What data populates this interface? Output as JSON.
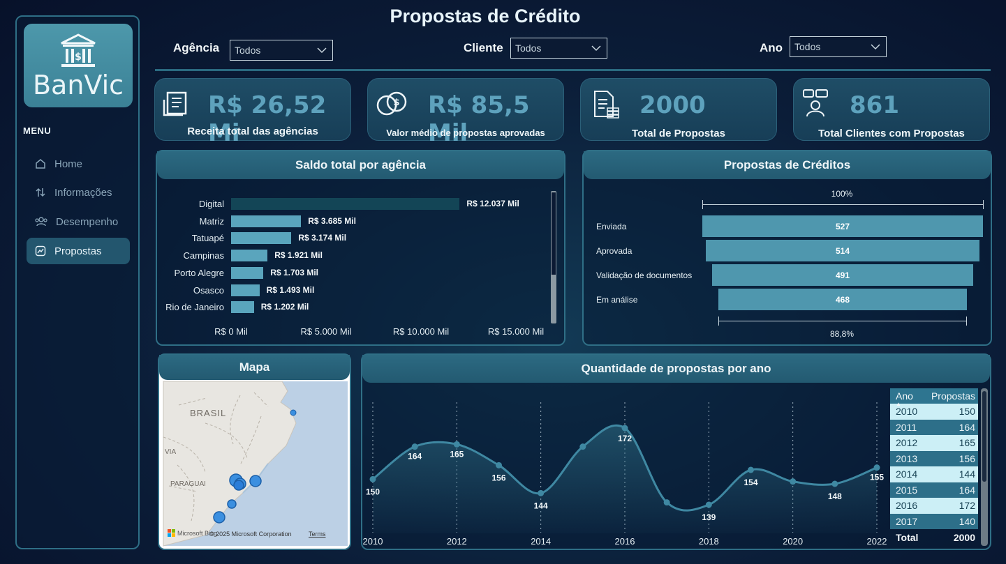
{
  "header": {
    "title": "Propostas de Crédito"
  },
  "sidebar": {
    "logo_text": "BanVic",
    "menu_label": "MENU",
    "items": [
      {
        "label": "Home",
        "icon": "home-icon"
      },
      {
        "label": "Informações",
        "icon": "sort-arrows-icon"
      },
      {
        "label": "Desempenho",
        "icon": "users-icon"
      },
      {
        "label": "Propostas",
        "icon": "trend-chart-icon"
      }
    ],
    "active": "Propostas"
  },
  "filters": {
    "agencia": {
      "label": "Agência",
      "value": "Todos"
    },
    "cliente": {
      "label": "Cliente",
      "value": "Todos"
    },
    "ano": {
      "label": "Ano",
      "value": "Todos"
    }
  },
  "kpis": [
    {
      "value": "R$ 26,52 Mi",
      "label": "Receita total das agências",
      "icon": "receipt-icon"
    },
    {
      "value": "R$ 85,5 Mil",
      "label": "Valor médio de propostas aprovadas",
      "icon": "coins-icon"
    },
    {
      "value": "2000",
      "label": "Total de Propostas",
      "icon": "document-money-icon"
    },
    {
      "value": "861",
      "label": "Total Clientes com Propostas",
      "icon": "client-chat-icon"
    }
  ],
  "saldo_panel": {
    "title": "Saldo total por agência"
  },
  "funnel_panel": {
    "title": "Propostas de Créditos",
    "top_pct": "100%",
    "bottom_pct": "88,8%"
  },
  "map_panel": {
    "title": "Mapa",
    "labels": {
      "country": "BRASIL",
      "paraguai": "PARAGUAI",
      "bolivia": "VIA"
    },
    "attribution": "© 2025 Microsoft Corporation",
    "terms": "Terms",
    "brand": "Microsoft Bing"
  },
  "year_panel": {
    "title": "Quantidade de propostas por ano",
    "table": {
      "col_ano": "Ano",
      "col_propostas": "Propostas",
      "rows": [
        {
          "ano": "2010",
          "v": "150"
        },
        {
          "ano": "2011",
          "v": "164"
        },
        {
          "ano": "2012",
          "v": "165"
        },
        {
          "ano": "2013",
          "v": "156"
        },
        {
          "ano": "2014",
          "v": "144"
        },
        {
          "ano": "2015",
          "v": "164"
        },
        {
          "ano": "2016",
          "v": "172"
        },
        {
          "ano": "2017",
          "v": "140"
        }
      ],
      "total_label": "Total",
      "total_value": "2000"
    }
  },
  "colors": {
    "accent": "#4f97ae",
    "panel_border": "#2f6f86",
    "kpi_value": "#5ea2bd"
  },
  "chart_data": [
    {
      "type": "bar",
      "orientation": "horizontal",
      "title": "Saldo total por agência",
      "categories": [
        "Digital",
        "Matriz",
        "Tatuapé",
        "Campinas",
        "Porto Alegre",
        "Osasco",
        "Rio de Janeiro"
      ],
      "values": [
        12037,
        3685,
        3174,
        1921,
        1703,
        1493,
        1202
      ],
      "value_labels": [
        "R$ 12.037 Mil",
        "R$ 3.685 Mil",
        "R$ 3.174 Mil",
        "R$ 1.921 Mil",
        "R$ 1.703 Mil",
        "R$ 1.493 Mil",
        "R$ 1.202 Mil"
      ],
      "xticks": [
        "R$ 0 Mil",
        "R$ 5.000 Mil",
        "R$ 10.000 Mil",
        "R$ 15.000 Mil"
      ],
      "xlim": [
        0,
        15000
      ]
    },
    {
      "type": "bar",
      "subtype": "funnel",
      "title": "Propostas de Créditos",
      "categories": [
        "Enviada",
        "Aprovada",
        "Validação de documentos",
        "Em análise"
      ],
      "values": [
        527,
        514,
        491,
        468
      ]
    },
    {
      "type": "area",
      "title": "Quantidade de propostas por ano",
      "x": [
        2010,
        2011,
        2012,
        2013,
        2014,
        2015,
        2016,
        2017,
        2018,
        2019,
        2020,
        2021,
        2022
      ],
      "values": [
        150,
        164,
        165,
        156,
        144,
        164,
        172,
        140,
        139,
        154,
        149,
        148,
        155
      ],
      "labeled_points": [
        {
          "x": 2010,
          "label": "150"
        },
        {
          "x": 2011,
          "label": "164"
        },
        {
          "x": 2012,
          "label": "165"
        },
        {
          "x": 2013,
          "label": "156"
        },
        {
          "x": 2014,
          "label": "144"
        },
        {
          "x": 2016,
          "label": "172"
        },
        {
          "x": 2018,
          "label": "139"
        },
        {
          "x": 2019,
          "label": "154"
        },
        {
          "x": 2021,
          "label": "148"
        },
        {
          "x": 2022,
          "label": "155"
        }
      ],
      "xticks": [
        "2010",
        "2012",
        "2014",
        "2016",
        "2018",
        "2020",
        "2022"
      ],
      "ylim": [
        130,
        175
      ],
      "grid": "vertical-dotted"
    }
  ]
}
